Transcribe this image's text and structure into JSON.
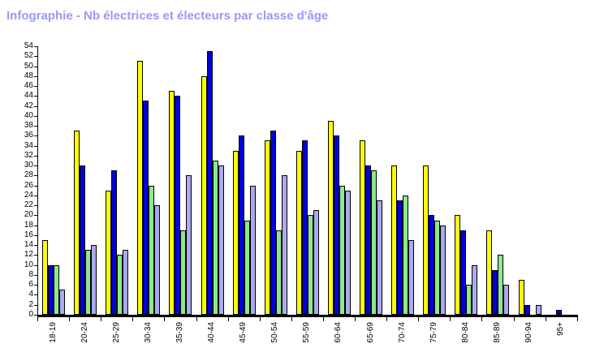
{
  "colors": {
    "title_text": "#9898fa",
    "axis": "#000000",
    "background": "#ffffff"
  },
  "chart_data": {
    "type": "bar",
    "title": "Infographie - Nb électrices et électeurs par classe d'âge",
    "categories": [
      "18-19",
      "20-24",
      "25-29",
      "30-34",
      "35-39",
      "40-44",
      "45-49",
      "50-54",
      "55-59",
      "60-64",
      "65-69",
      "70-74",
      "75-79",
      "80-84",
      "85-89",
      "90-94",
      "95+"
    ],
    "series": [
      {
        "name": "jaune",
        "color": "#ffff00",
        "values": [
          15,
          37,
          25,
          51,
          45,
          48,
          33,
          35,
          33,
          39,
          35,
          30,
          30,
          20,
          17,
          7,
          0
        ]
      },
      {
        "name": "bleu",
        "color": "#0000dd",
        "values": [
          10,
          30,
          29,
          43,
          44,
          53,
          36,
          37,
          35,
          36,
          30,
          23,
          20,
          17,
          9,
          2,
          1
        ]
      },
      {
        "name": "vert",
        "color": "#8ce98c",
        "values": [
          10,
          13,
          12,
          26,
          17,
          31,
          19,
          17,
          20,
          26,
          29,
          24,
          19,
          6,
          12,
          0,
          0
        ]
      },
      {
        "name": "mauve",
        "color": "#aaaaee",
        "values": [
          5,
          14,
          13,
          22,
          28,
          30,
          26,
          28,
          21,
          25,
          23,
          15,
          18,
          10,
          6,
          2,
          0
        ]
      }
    ],
    "xlabel": "",
    "ylabel": "",
    "ylim": [
      0,
      54
    ],
    "ytick_step": 2,
    "grid": false,
    "legend_position": "none"
  }
}
